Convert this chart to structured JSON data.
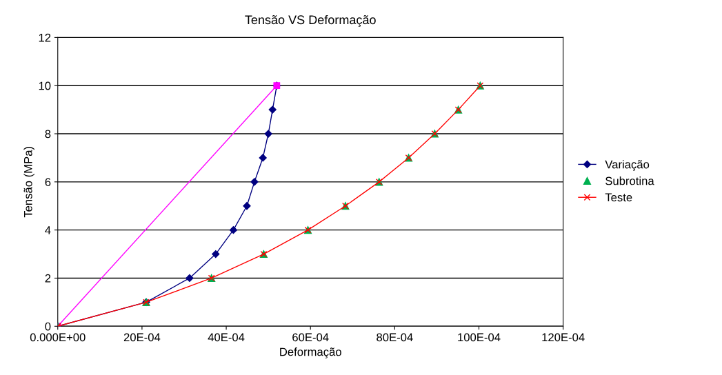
{
  "chart_data": {
    "type": "line",
    "title": "Tensão VS Deformação",
    "xlabel": "Deformação",
    "ylabel": "Tensão (MPa)",
    "series": [
      {
        "name": "Variação",
        "color": "#000080",
        "marker": "diamond",
        "x": [
          0,
          0.0021,
          0.00313,
          0.00375,
          0.00417,
          0.00449,
          0.00467,
          0.00487,
          0.005,
          0.0051,
          0.0052
        ],
        "values": [
          0,
          1,
          2,
          3,
          4,
          5,
          6,
          7,
          8,
          9,
          10
        ]
      },
      {
        "color": "#ff00ff",
        "marker": "square",
        "x": [
          0,
          0.0052
        ],
        "values": [
          0,
          10
        ]
      },
      {
        "name": "Subrotina",
        "type": "scatter",
        "color": "#00b050",
        "marker": "triangle",
        "x": [
          0,
          0.0021,
          0.00365,
          0.00489,
          0.00594,
          0.00683,
          0.00763,
          0.00833,
          0.00895,
          0.00951,
          0.01003
        ],
        "values": [
          0,
          1,
          2,
          3,
          4,
          5,
          6,
          7,
          8,
          9,
          10
        ]
      },
      {
        "name": "Teste",
        "color": "#ff0000",
        "marker": "cross",
        "x": [
          0,
          0.0021,
          0.00365,
          0.00489,
          0.00594,
          0.00683,
          0.00763,
          0.00833,
          0.00895,
          0.00951,
          0.01003
        ],
        "values": [
          0,
          1,
          2,
          3,
          4,
          5,
          6,
          7,
          8,
          9,
          10
        ]
      }
    ],
    "xlim": [
      0,
      0.012
    ],
    "xticks": [
      {
        "value": 0,
        "label": "0.000E+00"
      },
      {
        "value": 0.002,
        "label": "20E-04"
      },
      {
        "value": 0.004,
        "label": "40E-04"
      },
      {
        "value": 0.006,
        "label": "60E-04"
      },
      {
        "value": 0.008,
        "label": "80E-04"
      },
      {
        "value": 0.01,
        "label": "100E-04"
      },
      {
        "value": 0.012,
        "label": "120E-04"
      }
    ],
    "ylim": [
      0,
      12
    ],
    "yticks": [
      0,
      2,
      4,
      6,
      8,
      10,
      12
    ],
    "grid": "y",
    "legend": "right",
    "line_style": "solid"
  }
}
